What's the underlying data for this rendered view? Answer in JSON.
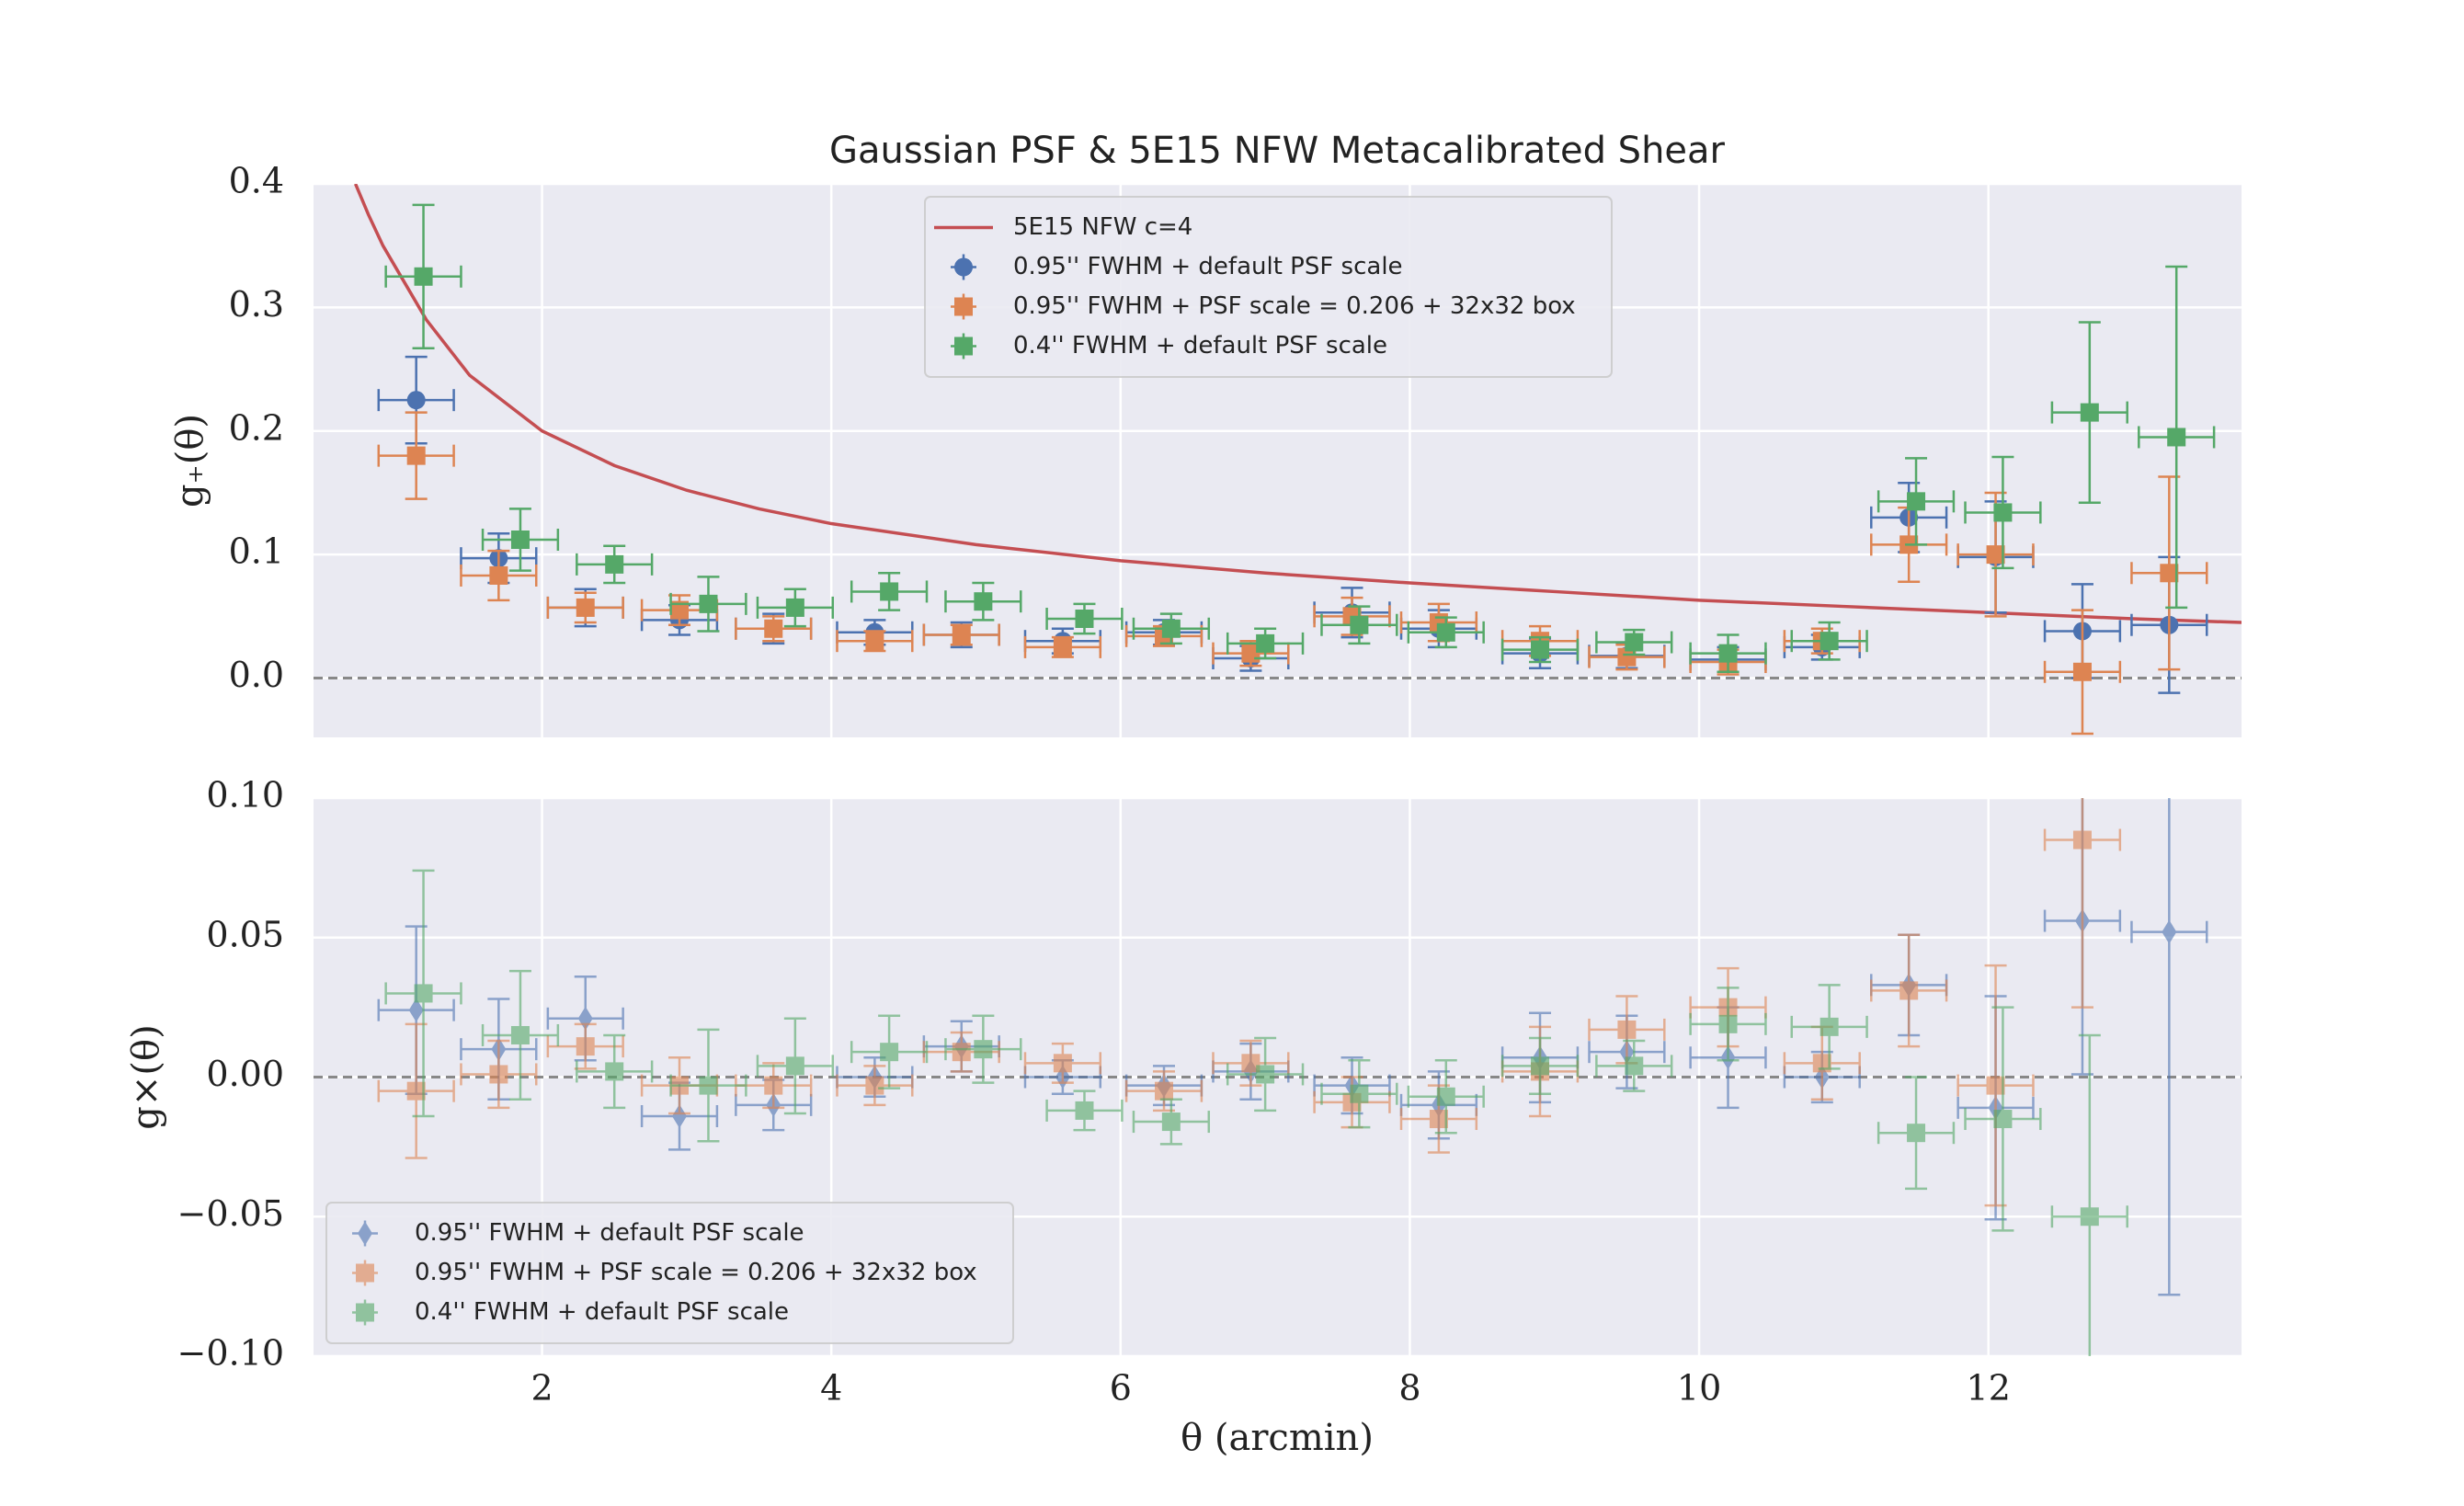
{
  "chart_data": [
    {
      "type": "errorbar",
      "title": "Gaussian PSF & 5E15 NFW Metacalibrated Shear",
      "ylabel": "g₊(θ)",
      "xlim": [
        0.42,
        13.75
      ],
      "xticks": [
        2,
        4,
        6,
        8,
        10,
        12
      ],
      "ylim": [
        -0.048,
        0.4
      ],
      "yticks": [
        {
          "value": 0,
          "label": "0.0"
        },
        0.1,
        0.2,
        0.3,
        0.4
      ],
      "grid": true,
      "hline": 0,
      "legend": "upper center",
      "series": [
        {
          "name": "5E15 NFW c=4",
          "color": "#c44e52",
          "marker": "line",
          "x": [
            0.71,
            0.8,
            0.9,
            1.0,
            1.2,
            1.5,
            2,
            2.5,
            3,
            3.5,
            4,
            5,
            6,
            7,
            8,
            9,
            10,
            11,
            12,
            13,
            13.75
          ],
          "values": [
            0.4,
            0.375,
            0.35,
            0.33,
            0.29,
            0.245,
            0.2,
            0.172,
            0.152,
            0.137,
            0.125,
            0.108,
            0.095,
            0.085,
            0.077,
            0.07,
            0.063,
            0.058,
            0.053,
            0.048,
            0.045
          ]
        },
        {
          "name": "0.95'' FWHM + default PSF scale",
          "color": "#4c72b0",
          "marker": "circle",
          "xerr": 0.26,
          "x": [
            1.13,
            1.7,
            2.3,
            2.95,
            3.6,
            4.3,
            4.9,
            5.6,
            6.3,
            6.9,
            7.6,
            8.2,
            8.9,
            9.5,
            10.2,
            10.85,
            11.45,
            12.05,
            12.65,
            13.25
          ],
          "values": [
            0.225,
            0.097,
            0.057,
            0.047,
            0.04,
            0.037,
            0.035,
            0.03,
            0.037,
            0.016,
            0.053,
            0.04,
            0.02,
            0.018,
            0.015,
            0.025,
            0.13,
            0.098,
            0.038,
            0.043
          ],
          "yerr": [
            0.035,
            0.02,
            0.015,
            0.012,
            0.012,
            0.01,
            0.01,
            0.01,
            0.01,
            0.01,
            0.02,
            0.015,
            0.012,
            0.01,
            0.01,
            0.01,
            0.028,
            0.045,
            0.038,
            0.055
          ]
        },
        {
          "name": "0.95'' FWHM + PSF scale = 0.206 + 32x32 box",
          "color": "#dd8452",
          "marker": "square",
          "xerr": 0.26,
          "x": [
            1.13,
            1.7,
            2.3,
            2.95,
            3.6,
            4.3,
            4.9,
            5.6,
            6.3,
            6.9,
            7.6,
            8.2,
            8.9,
            9.5,
            10.2,
            10.85,
            11.45,
            12.05,
            12.65,
            13.25
          ],
          "values": [
            0.18,
            0.083,
            0.057,
            0.055,
            0.04,
            0.03,
            0.035,
            0.025,
            0.034,
            0.02,
            0.05,
            0.045,
            0.03,
            0.017,
            0.013,
            0.03,
            0.108,
            0.1,
            0.005,
            0.085
          ],
          "yerr": [
            0.035,
            0.02,
            0.012,
            0.012,
            0.01,
            0.008,
            0.008,
            0.008,
            0.008,
            0.01,
            0.015,
            0.015,
            0.012,
            0.01,
            0.01,
            0.01,
            0.03,
            0.05,
            0.05,
            0.078
          ]
        },
        {
          "name": "0.4'' FWHM + default PSF scale",
          "color": "#55a868",
          "marker": "square",
          "xerr": 0.26,
          "x": [
            1.18,
            1.85,
            2.5,
            3.15,
            3.75,
            4.4,
            5.05,
            5.75,
            6.35,
            7.0,
            7.65,
            8.25,
            8.9,
            9.55,
            10.2,
            10.9,
            11.5,
            12.1,
            12.7,
            13.3
          ],
          "values": [
            0.325,
            0.112,
            0.092,
            0.06,
            0.057,
            0.07,
            0.062,
            0.048,
            0.04,
            0.028,
            0.043,
            0.037,
            0.023,
            0.029,
            0.02,
            0.03,
            0.143,
            0.134,
            0.215,
            0.195
          ],
          "yerr": [
            0.058,
            0.025,
            0.015,
            0.022,
            0.015,
            0.015,
            0.015,
            0.012,
            0.012,
            0.012,
            0.015,
            0.012,
            0.01,
            0.01,
            0.015,
            0.015,
            0.035,
            0.045,
            0.073,
            0.138
          ]
        }
      ]
    },
    {
      "type": "errorbar",
      "ylabel": "g×(θ)",
      "xlabel": "θ (arcmin)",
      "xlim": [
        0.42,
        13.75
      ],
      "xticks": [
        2,
        4,
        6,
        8,
        10,
        12
      ],
      "ylim": [
        -0.1,
        0.1
      ],
      "yticks": [
        {
          "value": -0.1,
          "label": "−0.10"
        },
        {
          "value": -0.05,
          "label": "−0.05"
        },
        {
          "value": 0,
          "label": "0.00"
        },
        0.05,
        {
          "value": 0.1,
          "label": "0.10"
        }
      ],
      "grid": true,
      "hline": 0,
      "legend": "lower left",
      "alpha": 0.6,
      "series": [
        {
          "name": "0.95'' FWHM + default PSF scale",
          "color": "#4c72b0",
          "marker": "diamond",
          "xerr": 0.26,
          "x": [
            1.13,
            1.7,
            2.3,
            2.95,
            3.6,
            4.3,
            4.9,
            5.6,
            6.3,
            6.9,
            7.6,
            8.2,
            8.9,
            9.5,
            10.2,
            10.85,
            11.45,
            12.05,
            12.65,
            13.25
          ],
          "values": [
            0.024,
            0.01,
            0.021,
            -0.014,
            -0.01,
            0,
            0.011,
            0,
            -0.003,
            0.002,
            -0.003,
            -0.01,
            0.007,
            0.009,
            0.007,
            0,
            0.033,
            -0.011,
            0.056,
            0.052
          ],
          "yerr": [
            0.03,
            0.018,
            0.015,
            0.012,
            0.009,
            0.007,
            0.009,
            0.006,
            0.007,
            0.01,
            0.01,
            0.012,
            0.016,
            0.013,
            0.018,
            0.009,
            0.018,
            0.04,
            0.055,
            0.13
          ]
        },
        {
          "name": "0.95'' FWHM + PSF scale = 0.206 + 32x32 box",
          "color": "#dd8452",
          "marker": "square",
          "xerr": 0.26,
          "x": [
            1.13,
            1.7,
            2.3,
            2.95,
            3.6,
            4.3,
            4.9,
            5.6,
            6.3,
            6.9,
            7.6,
            8.2,
            8.9,
            9.5,
            10.2,
            10.85,
            11.45,
            12.05,
            12.65,
            13.25
          ],
          "values": [
            -0.005,
            0.001,
            0.011,
            -0.003,
            -0.003,
            -0.003,
            0.009,
            0.005,
            -0.005,
            0.005,
            -0.009,
            -0.015,
            0.002,
            0.017,
            0.025,
            0.005,
            0.031,
            -0.003,
            0.085,
            null
          ],
          "yerr": [
            0.024,
            0.012,
            0.008,
            0.01,
            0.008,
            0.007,
            0.007,
            0.007,
            0.007,
            0.008,
            0.009,
            0.012,
            0.016,
            0.012,
            0.014,
            0.013,
            0.02,
            0.043,
            0.06,
            null
          ]
        },
        {
          "name": "0.4'' FWHM + default PSF scale",
          "color": "#55a868",
          "marker": "square",
          "xerr": 0.26,
          "x": [
            1.18,
            1.85,
            2.5,
            3.15,
            3.75,
            4.4,
            5.05,
            5.75,
            6.35,
            7.0,
            7.65,
            8.25,
            8.9,
            9.55,
            10.2,
            10.9,
            11.5,
            12.1,
            12.7,
            13.3
          ],
          "values": [
            0.03,
            0.015,
            0.002,
            -0.003,
            0.004,
            0.009,
            0.01,
            -0.012,
            -0.016,
            0.001,
            -0.006,
            -0.007,
            0.004,
            0.004,
            0.019,
            0.018,
            -0.02,
            -0.015,
            -0.05,
            null
          ],
          "yerr": [
            0.044,
            0.023,
            0.013,
            0.02,
            0.017,
            0.013,
            0.012,
            0.007,
            0.008,
            0.013,
            0.012,
            0.013,
            0.01,
            0.009,
            0.013,
            0.015,
            0.02,
            0.04,
            0.065,
            null
          ]
        }
      ]
    }
  ]
}
